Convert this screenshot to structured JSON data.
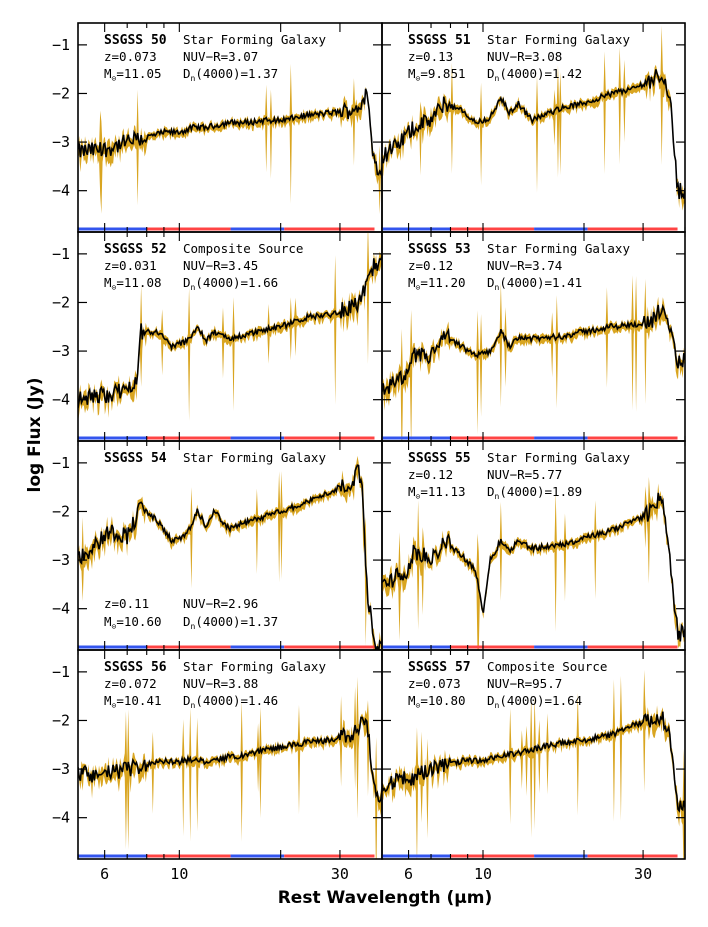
{
  "figure": {
    "ylabel": "log Flux (Jy)",
    "xlabel": "Rest Wavelength (μm)",
    "colors": {
      "spectrum": "#000000",
      "uncertainty": "#d9a520",
      "bar_red": "#ff4444",
      "bar_blue": "#3355ee"
    }
  },
  "chart_data": [
    {
      "type": "line",
      "panel": 1,
      "source": "SSGSS 50",
      "class": "Star Forming Galaxy",
      "z": "z=0.073",
      "mass": "11.05",
      "nuvr": "NUV−R=3.07",
      "dn": "1.37",
      "label_pos": "top",
      "x": [
        5.0,
        6.0,
        7.0,
        8.0,
        9.0,
        10.0,
        11.0,
        12.0,
        14.0,
        16.0,
        18.0,
        20.0,
        24.0,
        28.0,
        32.0,
        34.0,
        36.0,
        38.0
      ],
      "y": [
        -3.2,
        -3.15,
        -3.0,
        -2.9,
        -2.8,
        -2.8,
        -2.7,
        -2.7,
        -2.6,
        -2.6,
        -2.55,
        -2.55,
        -2.45,
        -2.4,
        -2.35,
        -2.3,
        -2.0,
        -3.5
      ],
      "xscale": "log",
      "xlim": [
        5,
        40
      ],
      "ylim": [
        -4.85,
        -0.55
      ]
    },
    {
      "type": "line",
      "panel": 2,
      "source": "SSGSS 51",
      "class": "Star Forming Galaxy",
      "z": "z=0.13",
      "mass": "9.851",
      "nuvr": "NUV−R=3.08",
      "dn": "1.42",
      "label_pos": "top",
      "x": [
        5.0,
        5.5,
        6.2,
        7.0,
        7.7,
        8.6,
        9.5,
        10.5,
        11.3,
        12.0,
        12.7,
        14.0,
        17.0,
        20.0,
        24.0,
        28.0,
        32.0,
        34.0,
        36.0,
        38.0
      ],
      "y": [
        -3.3,
        -3.1,
        -2.7,
        -2.55,
        -2.2,
        -2.35,
        -2.6,
        -2.5,
        -2.1,
        -2.4,
        -2.2,
        -2.55,
        -2.3,
        -2.2,
        -2.0,
        -1.9,
        -1.7,
        -1.6,
        -2.0,
        -4.0
      ],
      "xscale": "log",
      "xlim": [
        5,
        40
      ],
      "ylim": [
        -4.85,
        -0.55
      ]
    },
    {
      "type": "line",
      "panel": 3,
      "source": "SSGSS 52",
      "class": "Composite Source",
      "z": "z=0.031",
      "mass": "11.08",
      "nuvr": "NUV−R=3.45",
      "dn": "1.66",
      "label_pos": "top",
      "x": [
        5.0,
        6.0,
        7.0,
        7.5,
        7.7,
        8.6,
        9.5,
        10.5,
        11.3,
        12.0,
        12.7,
        14.0,
        17.0,
        20.0,
        24.0,
        28.0,
        32.0,
        34.0,
        36.0,
        38.0
      ],
      "y": [
        -4.0,
        -3.9,
        -3.8,
        -3.5,
        -2.6,
        -2.6,
        -2.9,
        -2.8,
        -2.5,
        -2.8,
        -2.6,
        -2.75,
        -2.6,
        -2.5,
        -2.3,
        -2.25,
        -2.1,
        -2.0,
        -1.7,
        -1.2
      ],
      "xscale": "log",
      "xlim": [
        5,
        40
      ],
      "ylim": [
        -4.85,
        -0.55
      ]
    },
    {
      "type": "line",
      "panel": 4,
      "source": "SSGSS 53",
      "class": "Star Forming Galaxy",
      "z": "z=0.12",
      "mass": "11.20",
      "nuvr": "NUV−R=3.74",
      "dn": "1.41",
      "label_pos": "top",
      "x": [
        5.0,
        6.0,
        6.2,
        7.0,
        7.7,
        8.6,
        9.5,
        10.5,
        11.3,
        12.0,
        12.7,
        14.0,
        17.0,
        20.0,
        24.0,
        28.0,
        32.0,
        34.0,
        36.0,
        38.0
      ],
      "y": [
        -3.8,
        -3.5,
        -3.1,
        -3.1,
        -2.7,
        -2.9,
        -3.1,
        -3.0,
        -2.6,
        -2.9,
        -2.7,
        -2.75,
        -2.7,
        -2.6,
        -2.5,
        -2.45,
        -2.4,
        -2.1,
        -2.6,
        -3.2
      ],
      "xscale": "log",
      "xlim": [
        5,
        40
      ],
      "ylim": [
        -4.85,
        -0.55
      ]
    },
    {
      "type": "line",
      "panel": 5,
      "source": "SSGSS 54",
      "class": "Star Forming Galaxy",
      "z": "z=0.11",
      "mass": "10.60",
      "nuvr": "NUV−R=2.96",
      "dn": "1.37",
      "label_pos": "split",
      "x": [
        5.0,
        6.2,
        7.0,
        7.7,
        8.6,
        9.5,
        10.5,
        11.3,
        12.0,
        12.7,
        14.0,
        17.0,
        20.0,
        24.0,
        28.0,
        32.0,
        34.0,
        35.0,
        36.0,
        38.0
      ],
      "y": [
        -3.0,
        -2.4,
        -2.5,
        -1.9,
        -2.2,
        -2.6,
        -2.5,
        -2.0,
        -2.3,
        -2.0,
        -2.35,
        -2.15,
        -2.0,
        -1.8,
        -1.6,
        -1.4,
        -1.2,
        -1.5,
        -3.5,
        -4.8
      ],
      "xscale": "log",
      "xlim": [
        5,
        40
      ],
      "ylim": [
        -4.85,
        -0.55
      ]
    },
    {
      "type": "line",
      "panel": 6,
      "source": "SSGSS 55",
      "class": "Star Forming Galaxy",
      "z": "z=0.12",
      "mass": "11.13",
      "nuvr": "NUV−R=5.77",
      "dn": "1.89",
      "label_pos": "top",
      "x": [
        5.0,
        6.0,
        6.2,
        7.0,
        7.7,
        8.6,
        9.5,
        10.0,
        10.5,
        11.3,
        12.0,
        12.7,
        14.0,
        17.0,
        20.0,
        24.0,
        28.0,
        32.0,
        34.0,
        36.0,
        38.0
      ],
      "y": [
        -3.5,
        -3.2,
        -2.8,
        -3.0,
        -2.6,
        -2.9,
        -3.2,
        -4.1,
        -3.0,
        -2.6,
        -2.8,
        -2.6,
        -2.75,
        -2.7,
        -2.55,
        -2.4,
        -2.2,
        -2.0,
        -1.6,
        -3.0,
        -4.5
      ],
      "xscale": "log",
      "xlim": [
        5,
        40
      ],
      "ylim": [
        -4.85,
        -0.55
      ]
    },
    {
      "type": "line",
      "panel": 7,
      "source": "SSGSS 56",
      "class": "Star Forming Galaxy",
      "z": "z=0.072",
      "mass": "10.41",
      "nuvr": "NUV−R=3.88",
      "dn": "1.46",
      "label_pos": "top",
      "x": [
        5.0,
        6.0,
        7.0,
        8.0,
        9.0,
        10.0,
        11.0,
        12.0,
        14.0,
        16.0,
        18.0,
        20.0,
        24.0,
        28.0,
        32.0,
        34.0,
        36.0,
        38.0
      ],
      "y": [
        -3.1,
        -3.1,
        -3.0,
        -2.9,
        -2.85,
        -2.85,
        -2.8,
        -2.85,
        -2.75,
        -2.7,
        -2.6,
        -2.55,
        -2.45,
        -2.4,
        -2.3,
        -2.2,
        -1.9,
        -3.5
      ],
      "xscale": "log",
      "xlim": [
        5,
        40
      ],
      "ylim": [
        -4.85,
        -0.55
      ]
    },
    {
      "type": "line",
      "panel": 8,
      "source": "SSGSS 57",
      "class": "Composite Source",
      "z": "z=0.073",
      "mass": "10.80",
      "nuvr": "NUV−R=95.7",
      "dn": "1.64",
      "label_pos": "top",
      "x": [
        5.0,
        6.0,
        7.0,
        8.0,
        9.0,
        10.0,
        11.0,
        12.0,
        14.0,
        16.0,
        18.0,
        20.0,
        24.0,
        28.0,
        32.0,
        34.0,
        36.0,
        38.0
      ],
      "y": [
        -3.3,
        -3.2,
        -3.0,
        -2.9,
        -2.8,
        -2.85,
        -2.75,
        -2.7,
        -2.6,
        -2.5,
        -2.45,
        -2.4,
        -2.3,
        -2.1,
        -2.0,
        -1.9,
        -2.2,
        -3.8
      ],
      "xscale": "log",
      "xlim": [
        5,
        40
      ],
      "ylim": [
        -4.85,
        -0.55
      ]
    }
  ],
  "axes": {
    "ytick_labels": [
      "−1",
      "−2",
      "−3",
      "−4"
    ],
    "xtick_labels": [
      "6",
      "10",
      "30"
    ]
  }
}
